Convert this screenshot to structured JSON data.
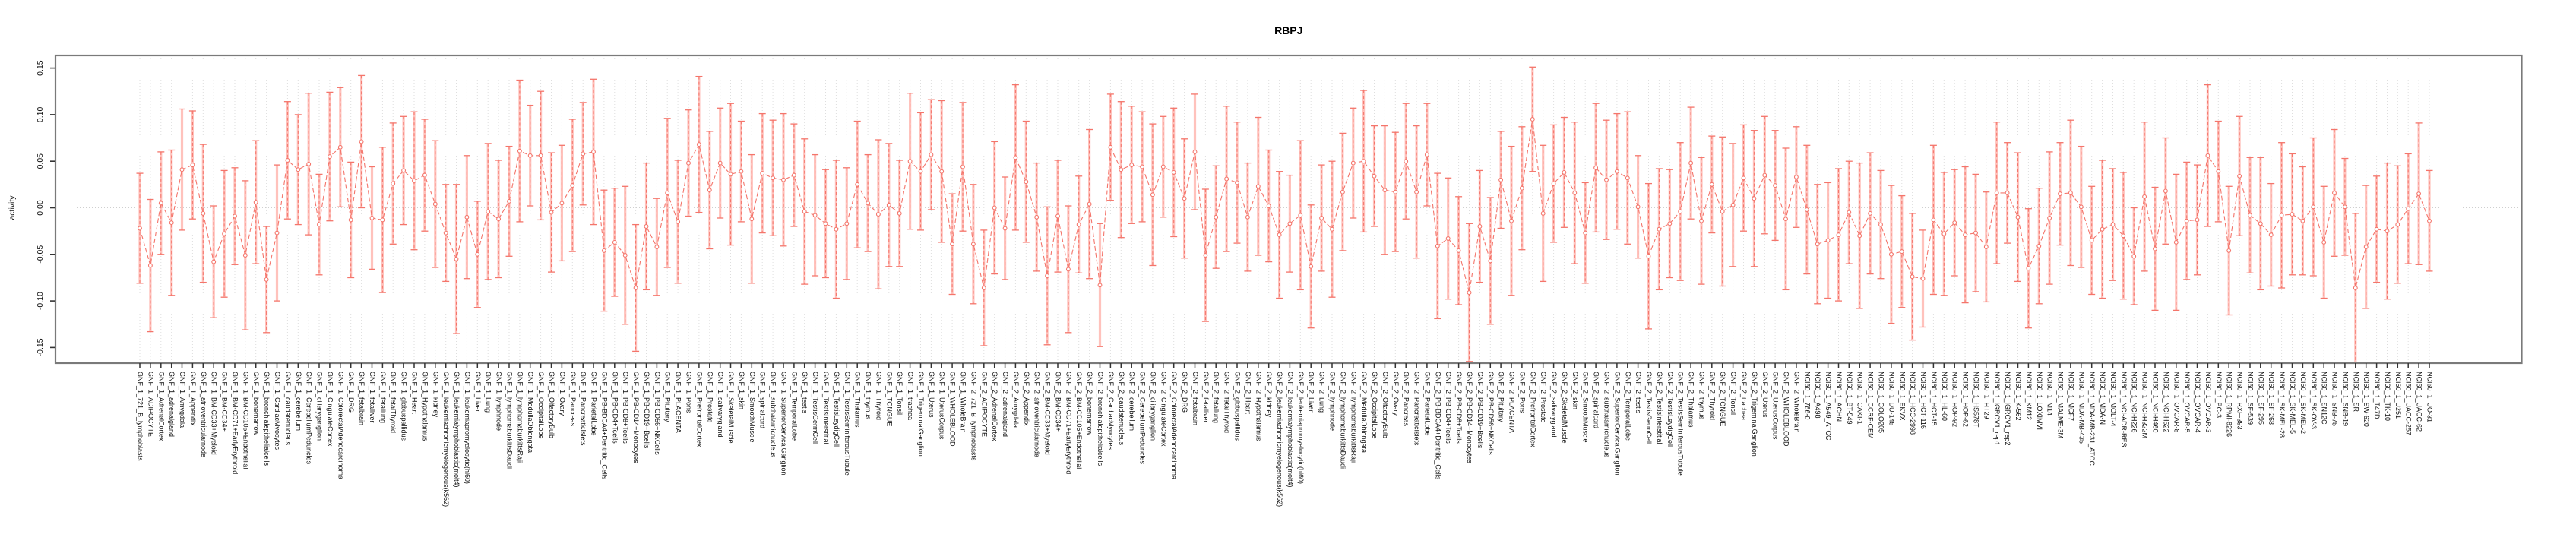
{
  "title": "RBPJ",
  "chart_data": {
    "type": "line",
    "title": "RBPJ",
    "xlabel": "",
    "ylabel": "activity",
    "ylim": [
      -0.167,
      0.163
    ],
    "yticks": [
      "0.15",
      "0.10",
      "0.05",
      "0.00",
      "-0.05",
      "-0.10",
      "-0.15"
    ],
    "grid": "vertical dotted line per category, horizontal dotted line at zero",
    "legend": "none",
    "marker": "open-circle",
    "error_bar_style": "dashed with caps",
    "point_color": "#f4756b",
    "band_color": "#ffb3ac",
    "categories": [
      "GNF_1_721_B_lymphoblasts",
      "GNF_1_ADIPOCYTE",
      "GNF_1_AdrenalCortex",
      "GNF_1_adrenalgland",
      "GNF_1_Amygdala",
      "GNF_1_Appendix",
      "GNF_1_atrioventricularnode",
      "GNF_1_BM-CD33+Myeloid",
      "GNF_1_BM-CD34+",
      "GNF_1_BM-CD71+EarlyErythroid",
      "GNF_1_BM-CD105+Endothelial",
      "GNF_1_bonemarrow",
      "GNF_1_bronchialepithelialcells",
      "GNF_1_CardiacMyocytes",
      "GNF_1_caudatenucleus",
      "GNF_1_cerebellum",
      "GNF_1_CerebellumPeduncles",
      "GNF_1_ciliaryganglion",
      "GNF_1_CingulateCortex",
      "GNF_1_ColorectalAdenocarcinoma",
      "GNF_1_DRG",
      "GNF_1_fetalbrain",
      "GNF_1_fetalliver",
      "GNF_1_fetallung",
      "GNF_1_fetalThyroid",
      "GNF_1_globuspallidus",
      "GNF_1_Heart",
      "GNF_1_Hypothalamus",
      "GNF_1_kidney",
      "GNF_1_leukemiachronicmyelogenous(k562)",
      "GNF_1_leukemialymphoblastic(molt4)",
      "GNF_1_leukemiapromyelocytic(hl60)",
      "GNF_1_Liver",
      "GNF_1_Lung",
      "GNF_1_lymphnode",
      "GNF_1_lymphomaburkittsDaudi",
      "GNF_1_lymphomaburkittsRaji",
      "GNF_1_MedullaOblongata",
      "GNF_1_OccipitalLobe",
      "GNF_1_OlfactoryBulb",
      "GNF_1_Ovary",
      "GNF_1_Pancreas",
      "GNF_1_PancreaticIslets",
      "GNF_1_ParietalLobe",
      "GNF_1_PB-BDCA4+Dentritic_Cells",
      "GNF_1_PB-CD4+Tcells",
      "GNF_1_PB-CD8+Tcells",
      "GNF_1_PB-CD14+Monocytes",
      "GNF_1_PB-CD19+Bcells",
      "GNF_1_PB-CD56+NKCells",
      "GNF_1_Pituitary",
      "GNF_1_PLACENTA",
      "GNF_1_Pons",
      "GNF_1_PrefrontalCortex",
      "GNF_1_Prostate",
      "GNF_1_salivarygland",
      "GNF_1_SkeletalMuscle",
      "GNF_1_skin",
      "GNF_1_SmoothMuscle",
      "GNF_1_spinalcord",
      "GNF_1_subthalamicnucleus",
      "GNF_1_SuperiorCervicalGanglion",
      "GNF_1_TemporalLobe",
      "GNF_1_testis",
      "GNF_1_TestisGermCell",
      "GNF_1_TestisInterstitial",
      "GNF_1_TestisLeydigCell",
      "GNF_1_TestisSeminiferousTubule",
      "GNF_1_Thalamus",
      "GNF_1_thymus",
      "GNF_1_Thyroid",
      "GNF_1_TONGUE",
      "GNF_1_Tonsil",
      "GNF_1_trachea",
      "GNF_1_TrigeminalGanglion",
      "GNF_1_Uterus",
      "GNF_1_UterusCorpus",
      "GNF_1_WHOLEBLOOD",
      "GNF_1_WholeBrain",
      "GNF_2_721_B_lymphoblasts",
      "GNF_2_ADIPOCYTE",
      "GNF_2_AdrenalCortex",
      "GNF_2_adrenalgland",
      "GNF_2_Amygdala",
      "GNF_2_Appendix",
      "GNF_2_atrioventricularnode",
      "GNF_2_BM-CD33+Myeloid",
      "GNF_2_BM-CD34+",
      "GNF_2_BM-CD71+EarlyErythroid",
      "GNF_2_BM-CD105+Endothelial",
      "GNF_2_bonemarrow",
      "GNF_2_bronchialepithelialcells",
      "GNF_2_CardiacMyocytes",
      "GNF_2_caudatenucleus",
      "GNF_2_cerebellum",
      "GNF_2_CerebellumPeduncles",
      "GNF_2_ciliaryganglion",
      "GNF_2_CingulateCortex",
      "GNF_2_ColorectalAdenocarcinoma",
      "GNF_2_DRG",
      "GNF_2_fetalbrain",
      "GNF_2_fetalliver",
      "GNF_2_fetallung",
      "GNF_2_fetalThyroid",
      "GNF_2_globuspallidus",
      "GNF_2_Heart",
      "GNF_2_Hypothalamus",
      "GNF_2_kidney",
      "GNF_2_leukemiachronicmyelogenous(k562)",
      "GNF_2_leukemialymphoblastic(molt4)",
      "GNF_2_leukemiapromyelocytic(hl60)",
      "GNF_2_Liver",
      "GNF_2_Lung",
      "GNF_2_lymphnode",
      "GNF_2_lymphomaburkittsDaudi",
      "GNF_2_lymphomaburkittsRaji",
      "GNF_2_MedullaOblongata",
      "GNF_2_OccipitalLobe",
      "GNF_2_OlfactoryBulb",
      "GNF_2_Ovary",
      "GNF_2_Pancreas",
      "GNF_2_PancreaticIslets",
      "GNF_2_ParietalLobe",
      "GNF_2_PB-BDCA4+Dentritic_Cells",
      "GNF_2_PB-CD4+Tcells",
      "GNF_2_PB-CD8+Tcells",
      "GNF_2_PB-CD14+Monocytes",
      "GNF_2_PB-CD19+Bcells",
      "GNF_2_PB-CD56+NKCells",
      "GNF_2_Pituitary",
      "GNF_2_PLACENTA",
      "GNF_2_Pons",
      "GNF_2_PrefrontalCortex",
      "GNF_2_Prostate",
      "GNF_2_salivarygland",
      "GNF_2_SkeletalMuscle",
      "GNF_2_skin",
      "GNF_2_SmoothMuscle",
      "GNF_2_spinalcord",
      "GNF_2_subthalamicnucleus",
      "GNF_2_SuperiorCervicalGanglion",
      "GNF_2_TemporalLobe",
      "GNF_2_testis",
      "GNF_2_TestisGermCell",
      "GNF_2_TestisInterstitial",
      "GNF_2_TestisLeydigCell",
      "GNF_2_TestisSeminiferousTubule",
      "GNF_2_Thalamus",
      "GNF_2_thymus",
      "GNF_2_Thyroid",
      "GNF_2_TONGUE",
      "GNF_2_Tonsil",
      "GNF_2_trachea",
      "GNF_2_TrigeminalGanglion",
      "GNF_2_Uterus",
      "GNF_2_UterusCorpus",
      "GNF_2_WHOLEBLOOD",
      "GNF_2_WholeBrain",
      "NCI60_1_786-0",
      "NCI60_1_A498",
      "NCI60_1_A549_ATCC",
      "NCI60_1_ACHN",
      "NCI60_1_BT-549",
      "NCI60_1_CAKI-1",
      "NCI60_1_CCRF-CEM",
      "NCI60_1_COLO205",
      "NCI60_1_DU-145",
      "NCI60_1_EKVX",
      "NCI60_1_HCC-2998",
      "NCI60_1_HCT-116",
      "NCI60_1_HCT-15",
      "NCI60_1_HL-60",
      "NCI60_1_HOP-92",
      "NCI60_1_HOP-62",
      "NCI60_1_HS578T",
      "NCI60_1_HT29",
      "NCI60_1_IGROV1_rep1",
      "NCI60_1_IGROV1_rep2",
      "NCI60_1_K-562",
      "NCI60_1_KM12",
      "NCI60_1_LOXIMVI",
      "NCI60_1_M14",
      "NCI60_1_MALME-3M",
      "NCI60_1_MCF7",
      "NCI60_1_MDA-MB-435",
      "NCI60_1_MDA-MB-231_ATCC",
      "NCI60_1_MDA-N",
      "NCI60_1_MOLT-4",
      "NCI60_1_NCI-ADR-RES",
      "NCI60_1_NCI-H226",
      "NCI60_1_NCI-H322M",
      "NCI60_1_NCI-H460",
      "NCI60_1_NCI-H522",
      "NCI60_1_OVCAR-8",
      "NCI60_1_OVCAR-5",
      "NCI60_1_OVCAR-4",
      "NCI60_1_OVCAR-3",
      "NCI60_1_PC-3",
      "NCI60_1_RPMI-8226",
      "NCI60_1_RXF-393",
      "NCI60_1_SF-539",
      "NCI60_1_SF-295",
      "NCI60_1_SF-268",
      "NCI60_1_SK-MEL-28",
      "NCI60_1_SK-MEL-5",
      "NCI60_1_SK-MEL-2",
      "NCI60_1_SK-OV-3",
      "NCI60_1_SN12C",
      "NCI60_1_SNB-75",
      "NCI60_1_SNB-19",
      "NCI60_1_SR",
      "NCI60_1_SW-620",
      "NCI60_1_T47D",
      "NCI60_1_TK-10",
      "NCI60_1_U251",
      "NCI60_1_UACC-257",
      "NCI60_1_UACC-62",
      "NCI60_1_UO-31"
    ],
    "values": [
      -0.022,
      -0.062,
      0.005,
      -0.016,
      0.041,
      0.046,
      -0.006,
      -0.058,
      -0.028,
      -0.009,
      -0.051,
      0.006,
      -0.077,
      -0.027,
      0.051,
      0.041,
      0.047,
      -0.018,
      0.055,
      0.065,
      -0.013,
      0.071,
      -0.011,
      -0.013,
      0.026,
      0.04,
      0.029,
      0.035,
      0.004,
      -0.027,
      -0.055,
      -0.01,
      -0.05,
      -0.004,
      -0.012,
      0.007,
      0.061,
      0.056,
      0.056,
      -0.005,
      0.005,
      0.024,
      0.058,
      0.06,
      -0.046,
      -0.037,
      -0.051,
      -0.086,
      -0.02,
      -0.042,
      0.016,
      -0.015,
      0.048,
      0.068,
      0.019,
      0.048,
      0.036,
      0.039,
      -0.012,
      0.037,
      0.032,
      0.03,
      0.035,
      -0.004,
      -0.008,
      -0.017,
      -0.023,
      -0.017,
      0.025,
      0.005,
      -0.007,
      0.003,
      -0.006,
      0.05,
      0.039,
      0.057,
      0.039,
      -0.039,
      0.044,
      -0.039,
      -0.086,
      0.0,
      -0.022,
      0.054,
      0.028,
      -0.01,
      -0.073,
      -0.009,
      -0.066,
      -0.018,
      0.004,
      -0.083,
      0.065,
      0.041,
      0.046,
      0.044,
      0.014,
      0.044,
      0.038,
      0.01,
      0.06,
      -0.051,
      -0.01,
      0.031,
      0.027,
      -0.01,
      0.023,
      0.002,
      -0.029,
      -0.017,
      -0.008,
      -0.063,
      -0.011,
      -0.023,
      0.017,
      0.048,
      0.05,
      0.034,
      0.019,
      0.017,
      0.05,
      0.017,
      0.057,
      -0.041,
      -0.033,
      -0.046,
      -0.091,
      -0.02,
      -0.057,
      0.03,
      -0.014,
      0.021,
      0.095,
      -0.006,
      0.026,
      0.038,
      0.016,
      -0.027,
      0.043,
      0.03,
      0.039,
      0.032,
      0.001,
      -0.052,
      -0.023,
      -0.017,
      -0.004,
      0.048,
      -0.014,
      0.025,
      -0.004,
      0.003,
      0.032,
      0.01,
      0.035,
      0.024,
      -0.012,
      0.033,
      -0.002,
      -0.039,
      -0.035,
      -0.029,
      -0.005,
      -0.03,
      -0.006,
      -0.018,
      -0.05,
      -0.047,
      -0.074,
      -0.076,
      -0.013,
      -0.028,
      -0.016,
      -0.029,
      -0.027,
      -0.042,
      0.016,
      0.016,
      -0.01,
      -0.065,
      -0.041,
      -0.011,
      0.015,
      0.016,
      0.001,
      -0.035,
      -0.023,
      -0.018,
      -0.03,
      -0.052,
      0.012,
      -0.044,
      0.018,
      -0.037,
      -0.014,
      -0.013,
      0.056,
      0.039,
      -0.046,
      0.034,
      -0.008,
      -0.017,
      -0.029,
      -0.008,
      -0.007,
      -0.014,
      0.001,
      -0.037,
      0.016,
      0.001,
      -0.086,
      -0.042,
      -0.023,
      -0.025,
      -0.018,
      -0.001,
      0.015,
      -0.014
    ],
    "errors": [
      0.059,
      0.071,
      0.055,
      0.078,
      0.065,
      0.058,
      0.074,
      0.06,
      0.068,
      0.052,
      0.08,
      0.066,
      0.057,
      0.073,
      0.063,
      0.059,
      0.076,
      0.054,
      0.069,
      0.064,
      0.062,
      0.071,
      0.055,
      0.078,
      0.065,
      0.058,
      0.074,
      0.06,
      0.068,
      0.052,
      0.08,
      0.066,
      0.057,
      0.073,
      0.063,
      0.059,
      0.076,
      0.054,
      0.069,
      0.064,
      0.062,
      0.071,
      0.055,
      0.078,
      0.065,
      0.058,
      0.074,
      0.068,
      0.068,
      0.052,
      0.08,
      0.066,
      0.057,
      0.073,
      0.063,
      0.059,
      0.076,
      0.054,
      0.069,
      0.064,
      0.062,
      0.071,
      0.055,
      0.078,
      0.065,
      0.058,
      0.074,
      0.06,
      0.068,
      0.052,
      0.08,
      0.066,
      0.057,
      0.073,
      0.063,
      0.059,
      0.076,
      0.054,
      0.069,
      0.064,
      0.062,
      0.071,
      0.055,
      0.078,
      0.065,
      0.058,
      0.074,
      0.06,
      0.068,
      0.052,
      0.08,
      0.066,
      0.057,
      0.073,
      0.063,
      0.059,
      0.076,
      0.054,
      0.069,
      0.064,
      0.062,
      0.071,
      0.055,
      0.078,
      0.065,
      0.058,
      0.074,
      0.06,
      0.068,
      0.052,
      0.08,
      0.066,
      0.057,
      0.073,
      0.063,
      0.059,
      0.076,
      0.054,
      0.069,
      0.064,
      0.062,
      0.071,
      0.055,
      0.078,
      0.065,
      0.058,
      0.074,
      0.06,
      0.068,
      0.052,
      0.08,
      0.066,
      0.056,
      0.073,
      0.063,
      0.059,
      0.076,
      0.054,
      0.069,
      0.064,
      0.062,
      0.071,
      0.055,
      0.078,
      0.065,
      0.058,
      0.074,
      0.06,
      0.068,
      0.052,
      0.08,
      0.066,
      0.057,
      0.073,
      0.063,
      0.059,
      0.076,
      0.054,
      0.069,
      0.064,
      0.062,
      0.071,
      0.055,
      0.078,
      0.065,
      0.058,
      0.074,
      0.06,
      0.068,
      0.052,
      0.08,
      0.066,
      0.057,
      0.073,
      0.063,
      0.059,
      0.076,
      0.054,
      0.069,
      0.064,
      0.062,
      0.071,
      0.055,
      0.078,
      0.065,
      0.058,
      0.074,
      0.06,
      0.068,
      0.052,
      0.08,
      0.066,
      0.057,
      0.073,
      0.063,
      0.059,
      0.076,
      0.054,
      0.069,
      0.064,
      0.062,
      0.071,
      0.055,
      0.078,
      0.065,
      0.058,
      0.074,
      0.06,
      0.068,
      0.052,
      0.08,
      0.066,
      0.057,
      0.073,
      0.063,
      0.059,
      0.076,
      0.054
    ]
  }
}
